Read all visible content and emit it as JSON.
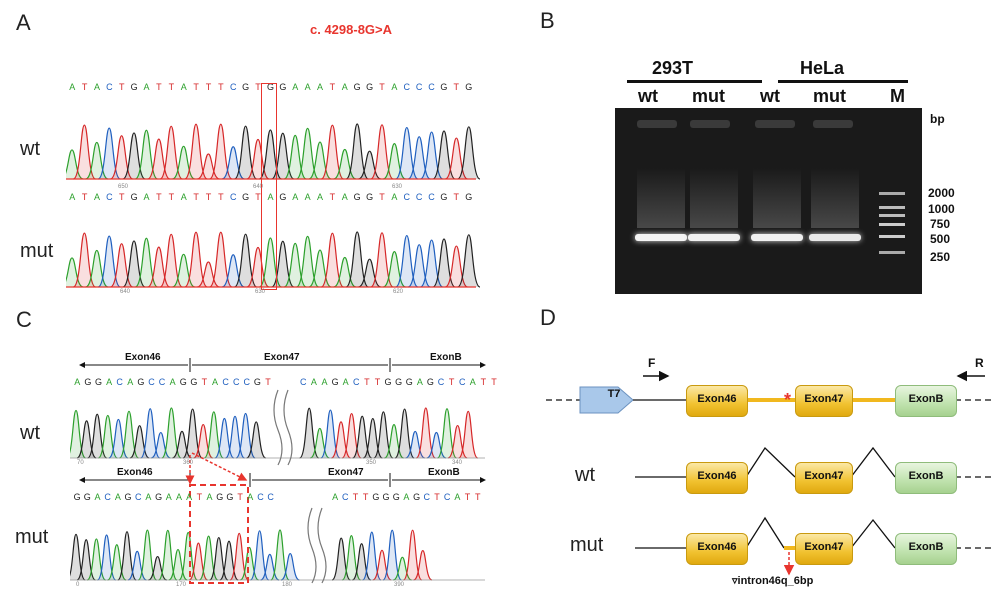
{
  "panels": {
    "a": "A",
    "b": "B",
    "c": "C",
    "d": "D"
  },
  "colors": {
    "A": "#2ca02c",
    "C": "#1f5fbf",
    "G": "#222222",
    "T": "#d62728",
    "mutation": "#e8352e",
    "exon_yellow": "#f1c230",
    "exon_green": "#bfe2ad",
    "t7": "#a9c8ea"
  },
  "panel_a": {
    "mutation_label": "c. 4298-8G>A",
    "wt_label": "wt",
    "mut_label": "mut",
    "wt_sequence": "ATACTGATTATTTCGTGGAAATAGGTACCCGTG",
    "mut_sequence": "ATACTGATTATTTCGTAGAAATAGGTACCCGTG",
    "wt_ticks": [
      "650",
      "640",
      "630"
    ],
    "mut_ticks": [
      "640",
      "630",
      "620"
    ]
  },
  "panel_b": {
    "cell_lines": [
      "293T",
      "HeLa"
    ],
    "lanes": [
      "wt",
      "mut",
      "wt",
      "mut"
    ],
    "marker_lane": "M",
    "unit": "bp",
    "marker_sizes": [
      "2000",
      "1000",
      "750",
      "500",
      "250"
    ],
    "band_size_bp": 500
  },
  "panel_c": {
    "wt_segments": [
      "Exon46",
      "Exon47",
      "ExonB"
    ],
    "mut_segments": [
      "Exon46",
      "Exon47",
      "ExonB"
    ],
    "wt_sequence_1": "AGGACAGCCAGGTACCCGT",
    "wt_sequence_2": "CAAGACTTGGGAGCTCATT",
    "mut_sequence_1": "GGACAGCAGAAATAGGTACC",
    "mut_sequence_2": "ACTTGGGAGCTCATT",
    "wt_label": "wt",
    "mut_label": "mut",
    "wt_ticks": [
      "70",
      "360",
      "350",
      "340"
    ],
    "mut_ticks": [
      "0",
      "170",
      "180",
      "390"
    ]
  },
  "panel_d": {
    "primer_f": "F",
    "primer_r": "R",
    "promoter": "T7",
    "exons": [
      "Exon46",
      "Exon47",
      "ExonB"
    ],
    "star": "*",
    "wt_label": "wt",
    "mut_label": "mut",
    "insertion_label": "▿intron46q_6bp"
  }
}
